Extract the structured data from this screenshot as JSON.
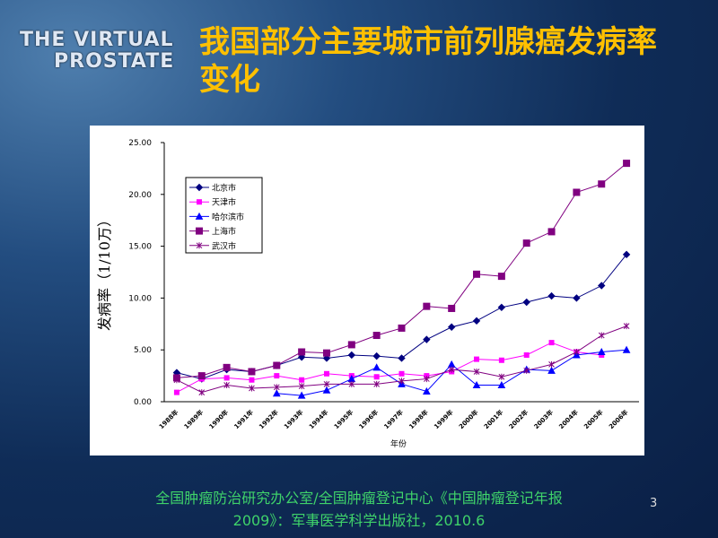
{
  "slide": {
    "logo": [
      "THE VIRTUAL",
      "PROSTATE"
    ],
    "source_lines": [
      "全国肿瘤防治研究办公室/全国肿瘤登记中心《中国肿瘤登记年报",
      "2009》：军事医学科学出版社，2010.6"
    ],
    "page_number": "3"
  },
  "chart_data": {
    "type": "line",
    "title": "我国部分主要城市前列腺癌发病率变化",
    "x_label": "年份",
    "y_label": "发病率（1/10万）",
    "categories": [
      "1988年",
      "1989年",
      "1990年",
      "1991年",
      "1992年",
      "1993年",
      "1994年",
      "1995年",
      "1996年",
      "1997年",
      "1998年",
      "1999年",
      "2000年",
      "2001年",
      "2002年",
      "2003年",
      "2004年",
      "2005年",
      "2006年"
    ],
    "series": [
      {
        "name": "北京市",
        "color": "#000080",
        "marker": "diamond",
        "values": [
          2.8,
          2.2,
          3.1,
          2.9,
          3.5,
          4.3,
          4.2,
          4.5,
          4.4,
          4.2,
          6.0,
          7.2,
          7.8,
          9.1,
          9.6,
          10.2,
          10.0,
          11.2,
          14.2
        ]
      },
      {
        "name": "天津市",
        "color": "#ff00ff",
        "marker": "square",
        "values": [
          0.9,
          2.2,
          2.3,
          2.1,
          2.5,
          2.1,
          2.7,
          2.5,
          2.4,
          2.7,
          2.5,
          2.9,
          4.1,
          4.0,
          4.5,
          5.7,
          4.8,
          4.5,
          null
        ]
      },
      {
        "name": "哈尔滨市",
        "color": "#0000ff",
        "marker": "triangle",
        "values": [
          null,
          null,
          null,
          null,
          0.8,
          0.6,
          1.1,
          2.2,
          3.3,
          1.7,
          1.0,
          3.6,
          1.6,
          1.6,
          3.1,
          3.0,
          4.5,
          4.8,
          5.0
        ]
      },
      {
        "name": "上海市",
        "color": "#800080",
        "marker": "bigsquare",
        "values": [
          2.3,
          2.5,
          3.3,
          2.9,
          3.5,
          4.8,
          4.7,
          5.5,
          6.4,
          7.1,
          9.2,
          9.0,
          12.3,
          12.1,
          15.3,
          16.4,
          20.2,
          21.0,
          23.0
        ]
      },
      {
        "name": "武汉市",
        "color": "#800080",
        "marker": "star",
        "values": [
          2.1,
          0.9,
          1.6,
          1.3,
          1.4,
          1.5,
          1.7,
          1.7,
          1.7,
          2.0,
          2.2,
          3.1,
          2.9,
          2.4,
          3.0,
          3.6,
          4.8,
          6.4,
          7.3
        ]
      }
    ],
    "ylim": [
      0,
      25
    ],
    "yticks": [
      {
        "value": 0,
        "label": "0.00"
      },
      {
        "value": 5,
        "label": "5.00"
      },
      {
        "value": 10,
        "label": "10.00"
      },
      {
        "value": 15,
        "label": "15.00"
      },
      {
        "value": 20,
        "label": "20.00"
      },
      {
        "value": 25,
        "label": "25.00"
      }
    ],
    "legend": "upper left",
    "grid": false
  }
}
